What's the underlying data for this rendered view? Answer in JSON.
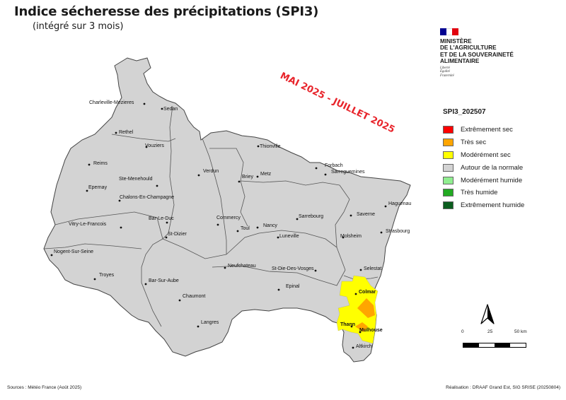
{
  "title": "Indice sécheresse des précipitations (SPI3)",
  "subtitle": "(intégré sur 3 mois)",
  "period_banner": "MAI 2025 - JUILLET 2025",
  "ministry": {
    "name": "MINISTÈRE\nDE L'AGRICULTURE\nET DE LA SOUVERAINETÉ\nALIMENTAIRE",
    "motto": "Liberté\nÉgalité\nFraternité",
    "flag_colors": [
      "#000091",
      "#ffffff",
      "#e1000f"
    ]
  },
  "legend": {
    "title": "SPI3_202507",
    "items": [
      {
        "label": "Extrêmement sec",
        "color": "#ff0000"
      },
      {
        "label": "Très sec",
        "color": "#ffa500"
      },
      {
        "label": "Modérément sec",
        "color": "#ffff00"
      },
      {
        "label": "Autour de la normale",
        "color": "#d3d3d3"
      },
      {
        "label": "Modérément humide",
        "color": "#90ee90"
      },
      {
        "label": "Très humide",
        "color": "#22aa22"
      },
      {
        "label": "Extrêmement humide",
        "color": "#0b5d1e"
      }
    ]
  },
  "scale": {
    "labels": [
      "0",
      "25",
      "50 km"
    ]
  },
  "north_icon": "north-arrow-icon",
  "sources_left": "Sources : Météo France (Août 2025)",
  "sources_right": "Réalisation : DRAAF Grand Est, SIG SRISE (20250804)",
  "map": {
    "region_color": "#d3d3d3",
    "cities": [
      {
        "name": "Charleville-Mezieres",
        "bold": false
      },
      {
        "name": "Sedan",
        "bold": false
      },
      {
        "name": "Rethel",
        "bold": false
      },
      {
        "name": "Vouziers",
        "bold": false
      },
      {
        "name": "Reims",
        "bold": false
      },
      {
        "name": "Ste-Menehould",
        "bold": false
      },
      {
        "name": "Epernay",
        "bold": false
      },
      {
        "name": "Chalons-En-Champagne",
        "bold": false
      },
      {
        "name": "Verdun",
        "bold": false
      },
      {
        "name": "Bar-Le-Duc",
        "bold": false
      },
      {
        "name": "Vitry-Le-Francois",
        "bold": false
      },
      {
        "name": "St-Dizier",
        "bold": false
      },
      {
        "name": "Nogent-Sur-Seine",
        "bold": false
      },
      {
        "name": "Troyes",
        "bold": false
      },
      {
        "name": "Bar-Sur-Aube",
        "bold": false
      },
      {
        "name": "Chaumont",
        "bold": false
      },
      {
        "name": "Langres",
        "bold": false
      },
      {
        "name": "Commercy",
        "bold": false
      },
      {
        "name": "Toul",
        "bold": false
      },
      {
        "name": "Nancy",
        "bold": false
      },
      {
        "name": "Luneville",
        "bold": false
      },
      {
        "name": "Neufchateau",
        "bold": false
      },
      {
        "name": "Epinal",
        "bold": false
      },
      {
        "name": "St-Die-Des-Vosges",
        "bold": false
      },
      {
        "name": "Thionville",
        "bold": false
      },
      {
        "name": "Briey",
        "bold": false
      },
      {
        "name": "Metz",
        "bold": false
      },
      {
        "name": "Forbach",
        "bold": false
      },
      {
        "name": "Sarreguemines",
        "bold": false
      },
      {
        "name": "Sarrebourg",
        "bold": false
      },
      {
        "name": "Saverne",
        "bold": false
      },
      {
        "name": "Haguenau",
        "bold": false
      },
      {
        "name": "Strasbourg",
        "bold": false
      },
      {
        "name": "Molsheim",
        "bold": false
      },
      {
        "name": "Selestat",
        "bold": false
      },
      {
        "name": "Colmar",
        "bold": true
      },
      {
        "name": "Thann",
        "bold": true
      },
      {
        "name": "Mulhouse",
        "bold": true
      },
      {
        "name": "Altkirch",
        "bold": false
      }
    ]
  }
}
